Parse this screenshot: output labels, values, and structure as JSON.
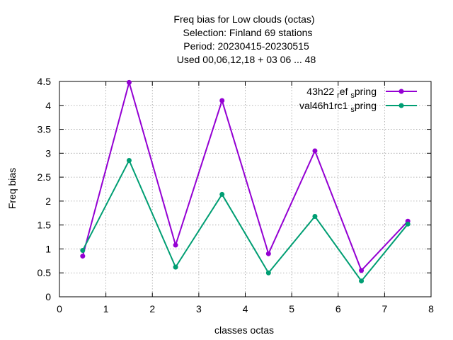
{
  "chart_data": {
    "type": "line",
    "title_lines": [
      "Freq bias  for Low clouds (octas)",
      "Selection: Finland     69 stations",
      "Period: 20230415-20230515",
      "Used  00,06,12,18  + 03 06 ... 48"
    ],
    "xlabel": "classes octas",
    "ylabel": "Freq bias",
    "xlim": [
      0,
      8
    ],
    "ylim": [
      0,
      4.5
    ],
    "xticks": [
      "0",
      "1",
      "2",
      "3",
      "4",
      "5",
      "6",
      "7",
      "8"
    ],
    "yticks": [
      "0",
      "0.5",
      "1",
      "1.5",
      "2",
      "2.5",
      "3",
      "3.5",
      "4",
      "4.5"
    ],
    "grid": true,
    "legend_position": "top-right",
    "x": [
      0.5,
      1.5,
      2.5,
      3.5,
      4.5,
      5.5,
      6.5,
      7.5
    ],
    "series": [
      {
        "name": "43h22_ref_spring",
        "legend_parts": [
          "43h22",
          "ref",
          "s",
          "pring"
        ],
        "color": "#9400d3",
        "values": [
          0.85,
          4.48,
          1.08,
          4.1,
          0.9,
          3.05,
          0.55,
          1.58
        ]
      },
      {
        "name": "val46h1rc1_spring",
        "legend_parts": [
          "val46h1rc1",
          "",
          "s",
          "pring"
        ],
        "color": "#009e73",
        "values": [
          0.97,
          2.85,
          0.62,
          2.14,
          0.5,
          1.68,
          0.33,
          1.52
        ]
      }
    ]
  }
}
